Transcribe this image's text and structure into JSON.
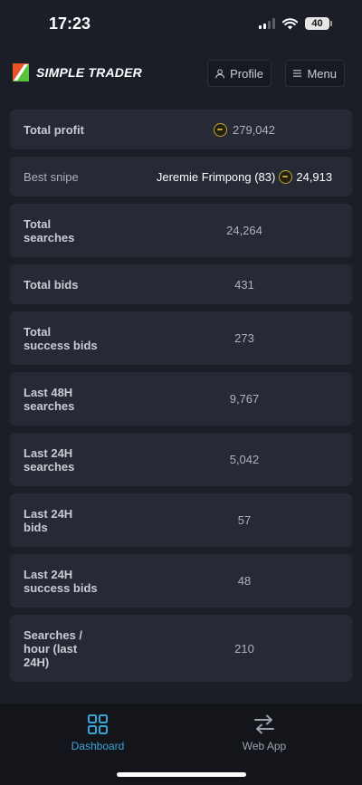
{
  "status_bar": {
    "time": "17:23",
    "battery": "40"
  },
  "header": {
    "brand": "SIMPLE TRADER",
    "profile_label": "Profile",
    "menu_label": "Menu"
  },
  "stats": [
    {
      "label": "Total profit",
      "value": "279,042",
      "coin": true
    },
    {
      "label": "Best snipe",
      "player": "Jeremie Frimpong (83)",
      "value": "24,913",
      "coin": true
    },
    {
      "label": "Total searches",
      "value": "24,264"
    },
    {
      "label": "Total bids",
      "value": "431"
    },
    {
      "label": "Total success bids",
      "value": "273"
    },
    {
      "label": "Last 48H searches",
      "value": "9,767"
    },
    {
      "label": "Last 24H searches",
      "value": "5,042"
    },
    {
      "label": "Last 24H bids",
      "value": "57"
    },
    {
      "label": "Last 24H success bids",
      "value": "48"
    },
    {
      "label": "Searches / hour (last 24H)",
      "value": "210"
    }
  ],
  "bottom_nav": {
    "dashboard_label": "Dashboard",
    "webapp_label": "Web App"
  },
  "colors": {
    "background": "#1b1e26",
    "card": "#262a35",
    "accent": "#3ca5d8",
    "coin_gold": "#c9a235"
  }
}
